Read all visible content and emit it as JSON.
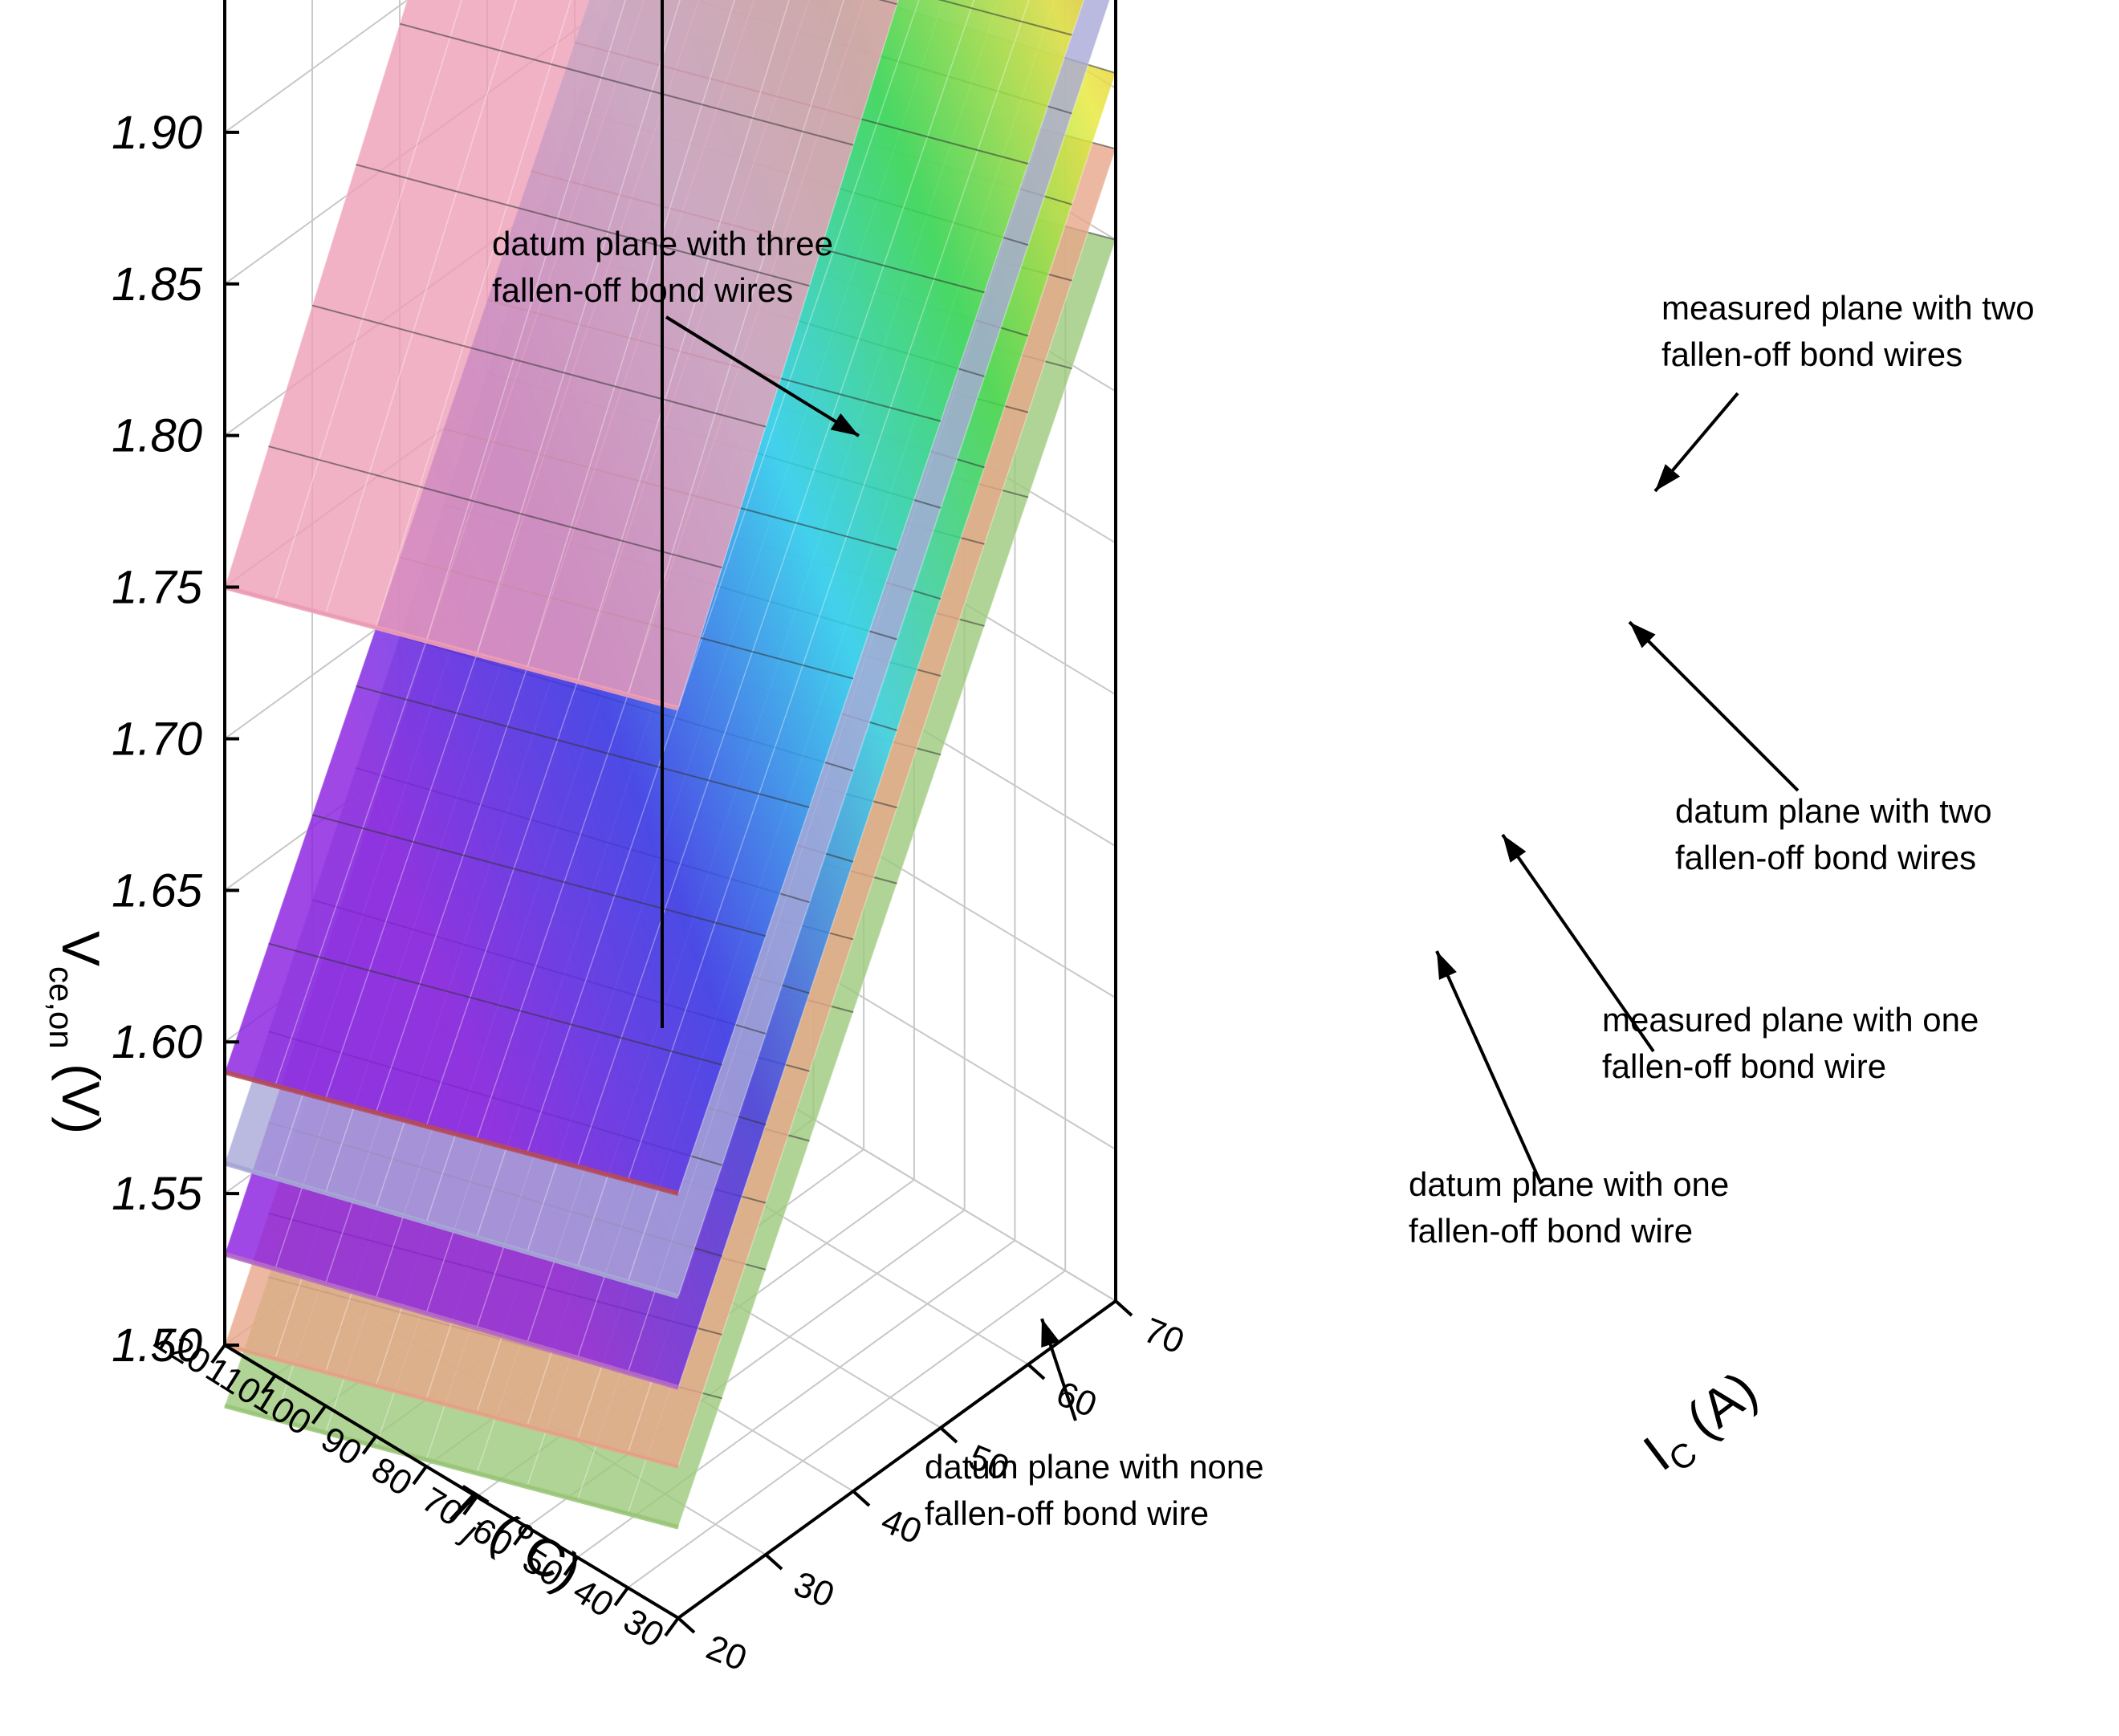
{
  "chart_data": {
    "type": "surface3d",
    "xlabel": {
      "main": "T",
      "sub": "j",
      "unit": " (°C)"
    },
    "ylabel": {
      "main": "I",
      "sub": "C",
      "unit": " (A)"
    },
    "zlabel": {
      "main": "V",
      "sub": "ce,on",
      "unit": " (V)"
    },
    "x_ticks": [
      "30",
      "40",
      "50",
      "60",
      "70",
      "80",
      "90",
      "100",
      "110",
      "120"
    ],
    "y_ticks": [
      "20",
      "30",
      "40",
      "50",
      "60",
      "70"
    ],
    "z_ticks": [
      "1.50",
      "1.55",
      "1.60",
      "1.65",
      "1.70",
      "1.75",
      "1.80",
      "1.85",
      "1.90"
    ],
    "xlim": [
      30,
      120
    ],
    "ylim": [
      20,
      70
    ],
    "zlim": [
      1.5,
      1.95
    ],
    "series": [
      {
        "label_lines": [
          "datum plane with none",
          "fallen-off bond wire"
        ],
        "style": "plain",
        "color": "#9cc97a",
        "corners": {
          "x30_y20": 1.53,
          "x120_y20": 1.48,
          "x30_y70": 1.85,
          "x120_y70": 1.8
        }
      },
      {
        "label_lines": [
          "datum plane with one",
          "fallen-off bond wire"
        ],
        "style": "plain",
        "color": "#e8a68a",
        "corners": {
          "x30_y20": 1.55,
          "x120_y20": 1.5,
          "x30_y70": 1.88,
          "x120_y70": 1.83
        }
      },
      {
        "label_lines": [
          "measured plane with one",
          "fallen-off bond wire"
        ],
        "style": "rainbow",
        "color": "#b86cc8",
        "corners": {
          "x30_y20": 1.576,
          "x120_y20": 1.53,
          "x30_y70": 1.905,
          "x120_y70": 1.86
        }
      },
      {
        "label_lines": [
          "datum plane with two",
          "fallen-off bond wires"
        ],
        "style": "plain",
        "color": "#a9a9d8",
        "corners": {
          "x30_y20": 1.606,
          "x120_y20": 1.56,
          "x30_y70": 1.935,
          "x120_y70": 1.89
        }
      },
      {
        "label_lines": [
          "measured plane with two",
          "fallen-off bond wires"
        ],
        "style": "rainbow",
        "color": "#b84a5a",
        "corners": {
          "x30_y20": 1.64,
          "x120_y20": 1.59,
          "x30_y70": 1.96,
          "x120_y70": 1.91
        }
      },
      {
        "label_lines": [
          "datum plane with three",
          "fallen-off bond wires"
        ],
        "style": "plain",
        "color": "#ef9fb8",
        "corners": {
          "x30_y20": 1.8,
          "x120_y20": 1.75,
          "x30_y70": 2.16,
          "x120_y70": 2.11
        }
      }
    ]
  }
}
